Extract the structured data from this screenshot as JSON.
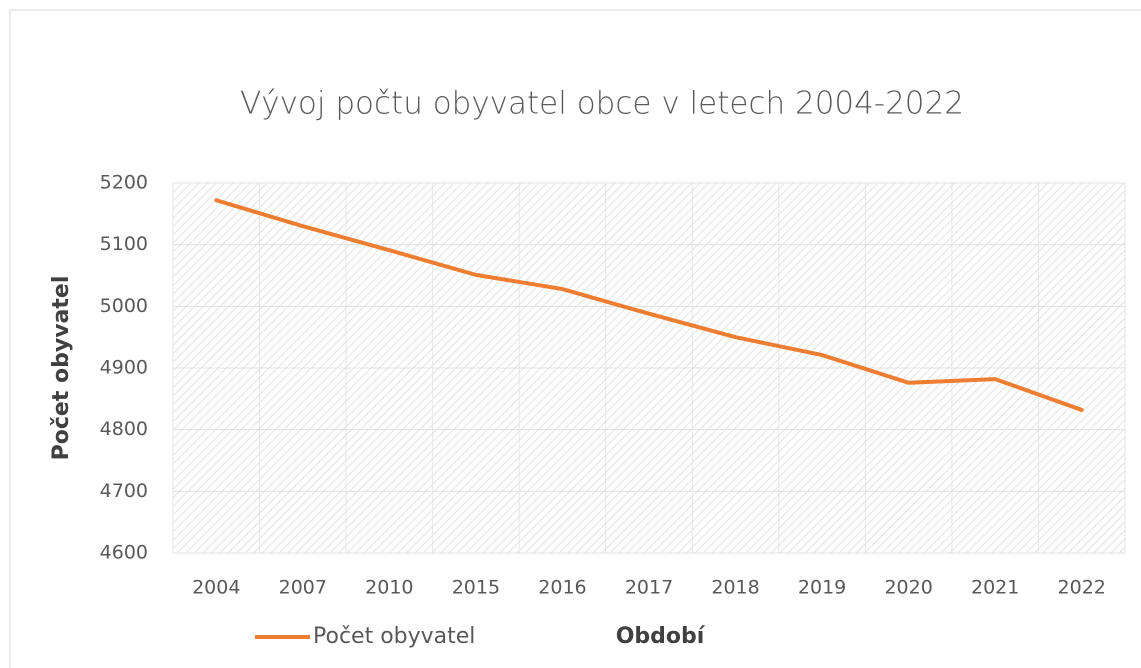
{
  "chart_data": {
    "type": "line",
    "title": "Vývoj počtu obyvatel obce v letech 2004-2022",
    "x_label": "Období",
    "y_label": "Počet obyvatel",
    "categories": [
      "2004",
      "2007",
      "2010",
      "2015",
      "2016",
      "2017",
      "2018",
      "2019",
      "2020",
      "2021",
      "2022"
    ],
    "series": [
      {
        "name": "Počet obyvatel",
        "color": "#ed7d31",
        "values": [
          5172,
          5130,
          5091,
          5051,
          5028,
          4988,
          4950,
          4921,
          4876,
          4882,
          4832
        ]
      }
    ],
    "ylim": [
      4600,
      5200
    ],
    "yticks": [
      4600,
      4700,
      4800,
      4900,
      5000,
      5100,
      5200
    ],
    "grid": true
  }
}
